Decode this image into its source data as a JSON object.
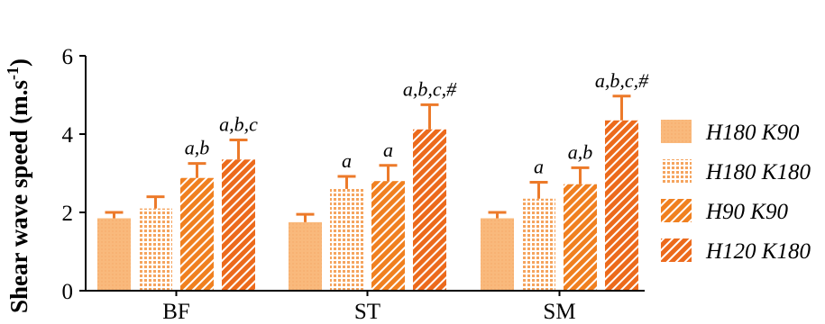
{
  "chart_data": {
    "type": "bar",
    "ylabel_main": "Shear wave speed (m.s",
    "ylabel_sup": "-1",
    "ylabel_end": ")",
    "ylim": [
      0,
      6
    ],
    "yticks": [
      "0",
      "2",
      "4",
      "6"
    ],
    "categories": [
      "BF",
      "ST",
      "SM"
    ],
    "legend_position": "right",
    "series": [
      {
        "name": "H180 K90",
        "values": [
          1.85,
          1.75,
          1.85
        ],
        "errors": [
          0.15,
          0.2,
          0.15
        ],
        "labels": [
          "",
          "",
          ""
        ],
        "color": "#f8b878",
        "pattern": "fine"
      },
      {
        "name": "H180 K180",
        "values": [
          2.1,
          2.6,
          2.35
        ],
        "errors": [
          0.3,
          0.32,
          0.42
        ],
        "labels": [
          "",
          "a",
          "a"
        ],
        "color": "#f5a05a",
        "pattern": "dots"
      },
      {
        "name": "H90 K90",
        "values": [
          2.88,
          2.8,
          2.72
        ],
        "errors": [
          0.37,
          0.4,
          0.42
        ],
        "labels": [
          "a,b",
          "a",
          "a,b"
        ],
        "color": "#f08020",
        "pattern": "hatch"
      },
      {
        "name": "H120 K180",
        "values": [
          3.35,
          4.12,
          4.35
        ],
        "errors": [
          0.5,
          0.63,
          0.62
        ],
        "labels": [
          "a,b,c",
          "a,b,c,#",
          "a,b,c,#"
        ],
        "color": "#ec6a1c",
        "pattern": "hatch"
      }
    ]
  },
  "colors": {
    "error_bar": "#ec7a2a",
    "axis": "#000000"
  }
}
